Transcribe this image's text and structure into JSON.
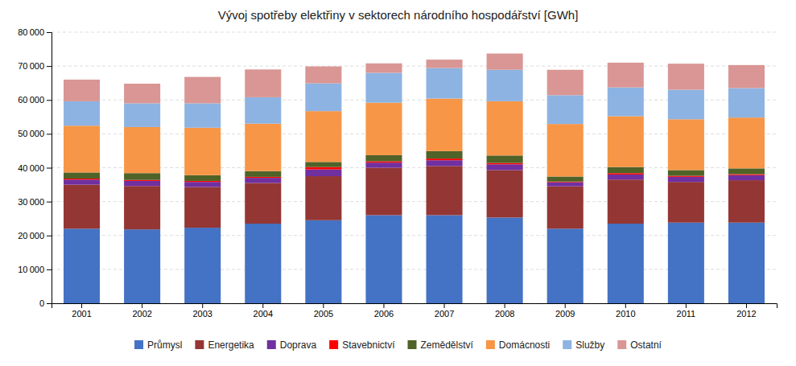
{
  "chart_data": {
    "type": "bar",
    "title": "Vývoj spotřeby elektřiny v sektorech národního hospodářství [GWh]",
    "categories": [
      "2001",
      "2002",
      "2003",
      "2004",
      "2005",
      "2006",
      "2007",
      "2008",
      "2009",
      "2010",
      "2011",
      "2012"
    ],
    "series": [
      {
        "name": "Průmysl",
        "color": "#4472c4",
        "values": [
          22000,
          21800,
          22300,
          23500,
          24500,
          26000,
          26000,
          25300,
          22000,
          23500,
          23800,
          23800
        ]
      },
      {
        "name": "Energetika",
        "color": "#943634",
        "values": [
          13000,
          12800,
          12000,
          12000,
          13000,
          14000,
          14500,
          14000,
          12500,
          13000,
          12000,
          12500
        ]
      },
      {
        "name": "Doprava",
        "color": "#7030a0",
        "values": [
          1500,
          1500,
          1500,
          1500,
          2000,
          1500,
          1700,
          1700,
          1200,
          1500,
          1500,
          1500
        ]
      },
      {
        "name": "Stavebnictví",
        "color": "#ff0000",
        "values": [
          300,
          300,
          300,
          300,
          700,
          400,
          500,
          400,
          200,
          400,
          300,
          300
        ]
      },
      {
        "name": "Zemědělství",
        "color": "#4f6228",
        "values": [
          1800,
          2000,
          1700,
          1700,
          1500,
          1800,
          2200,
          2200,
          1500,
          1800,
          1700,
          1700
        ]
      },
      {
        "name": "Domácnosti",
        "color": "#f79646",
        "values": [
          13800,
          13600,
          14000,
          14000,
          15000,
          15500,
          15500,
          16000,
          15500,
          15000,
          15000,
          15000
        ]
      },
      {
        "name": "Služby",
        "color": "#8db3e2",
        "values": [
          7200,
          7000,
          7200,
          7800,
          8200,
          8800,
          9000,
          9300,
          8500,
          8500,
          8700,
          8700
        ]
      },
      {
        "name": "Ostatní",
        "color": "#d99694",
        "values": [
          6400,
          5800,
          7800,
          8200,
          5000,
          2800,
          2500,
          4800,
          7500,
          7300,
          7700,
          6800
        ]
      }
    ],
    "stacked": true,
    "ylim": [
      0,
      80000
    ],
    "yticks": [
      0,
      {
        "value": 10000,
        "label": "10 000"
      },
      {
        "value": 20000,
        "label": "20 000"
      },
      {
        "value": 30000,
        "label": "30 000"
      },
      {
        "value": 40000,
        "label": "40 000"
      },
      {
        "value": 50000,
        "label": "50 000"
      },
      {
        "value": 60000,
        "label": "60 000"
      },
      {
        "value": 70000,
        "label": "70 000"
      },
      {
        "value": 80000,
        "label": "80 000"
      }
    ],
    "grid": true,
    "legend": "bottom"
  }
}
